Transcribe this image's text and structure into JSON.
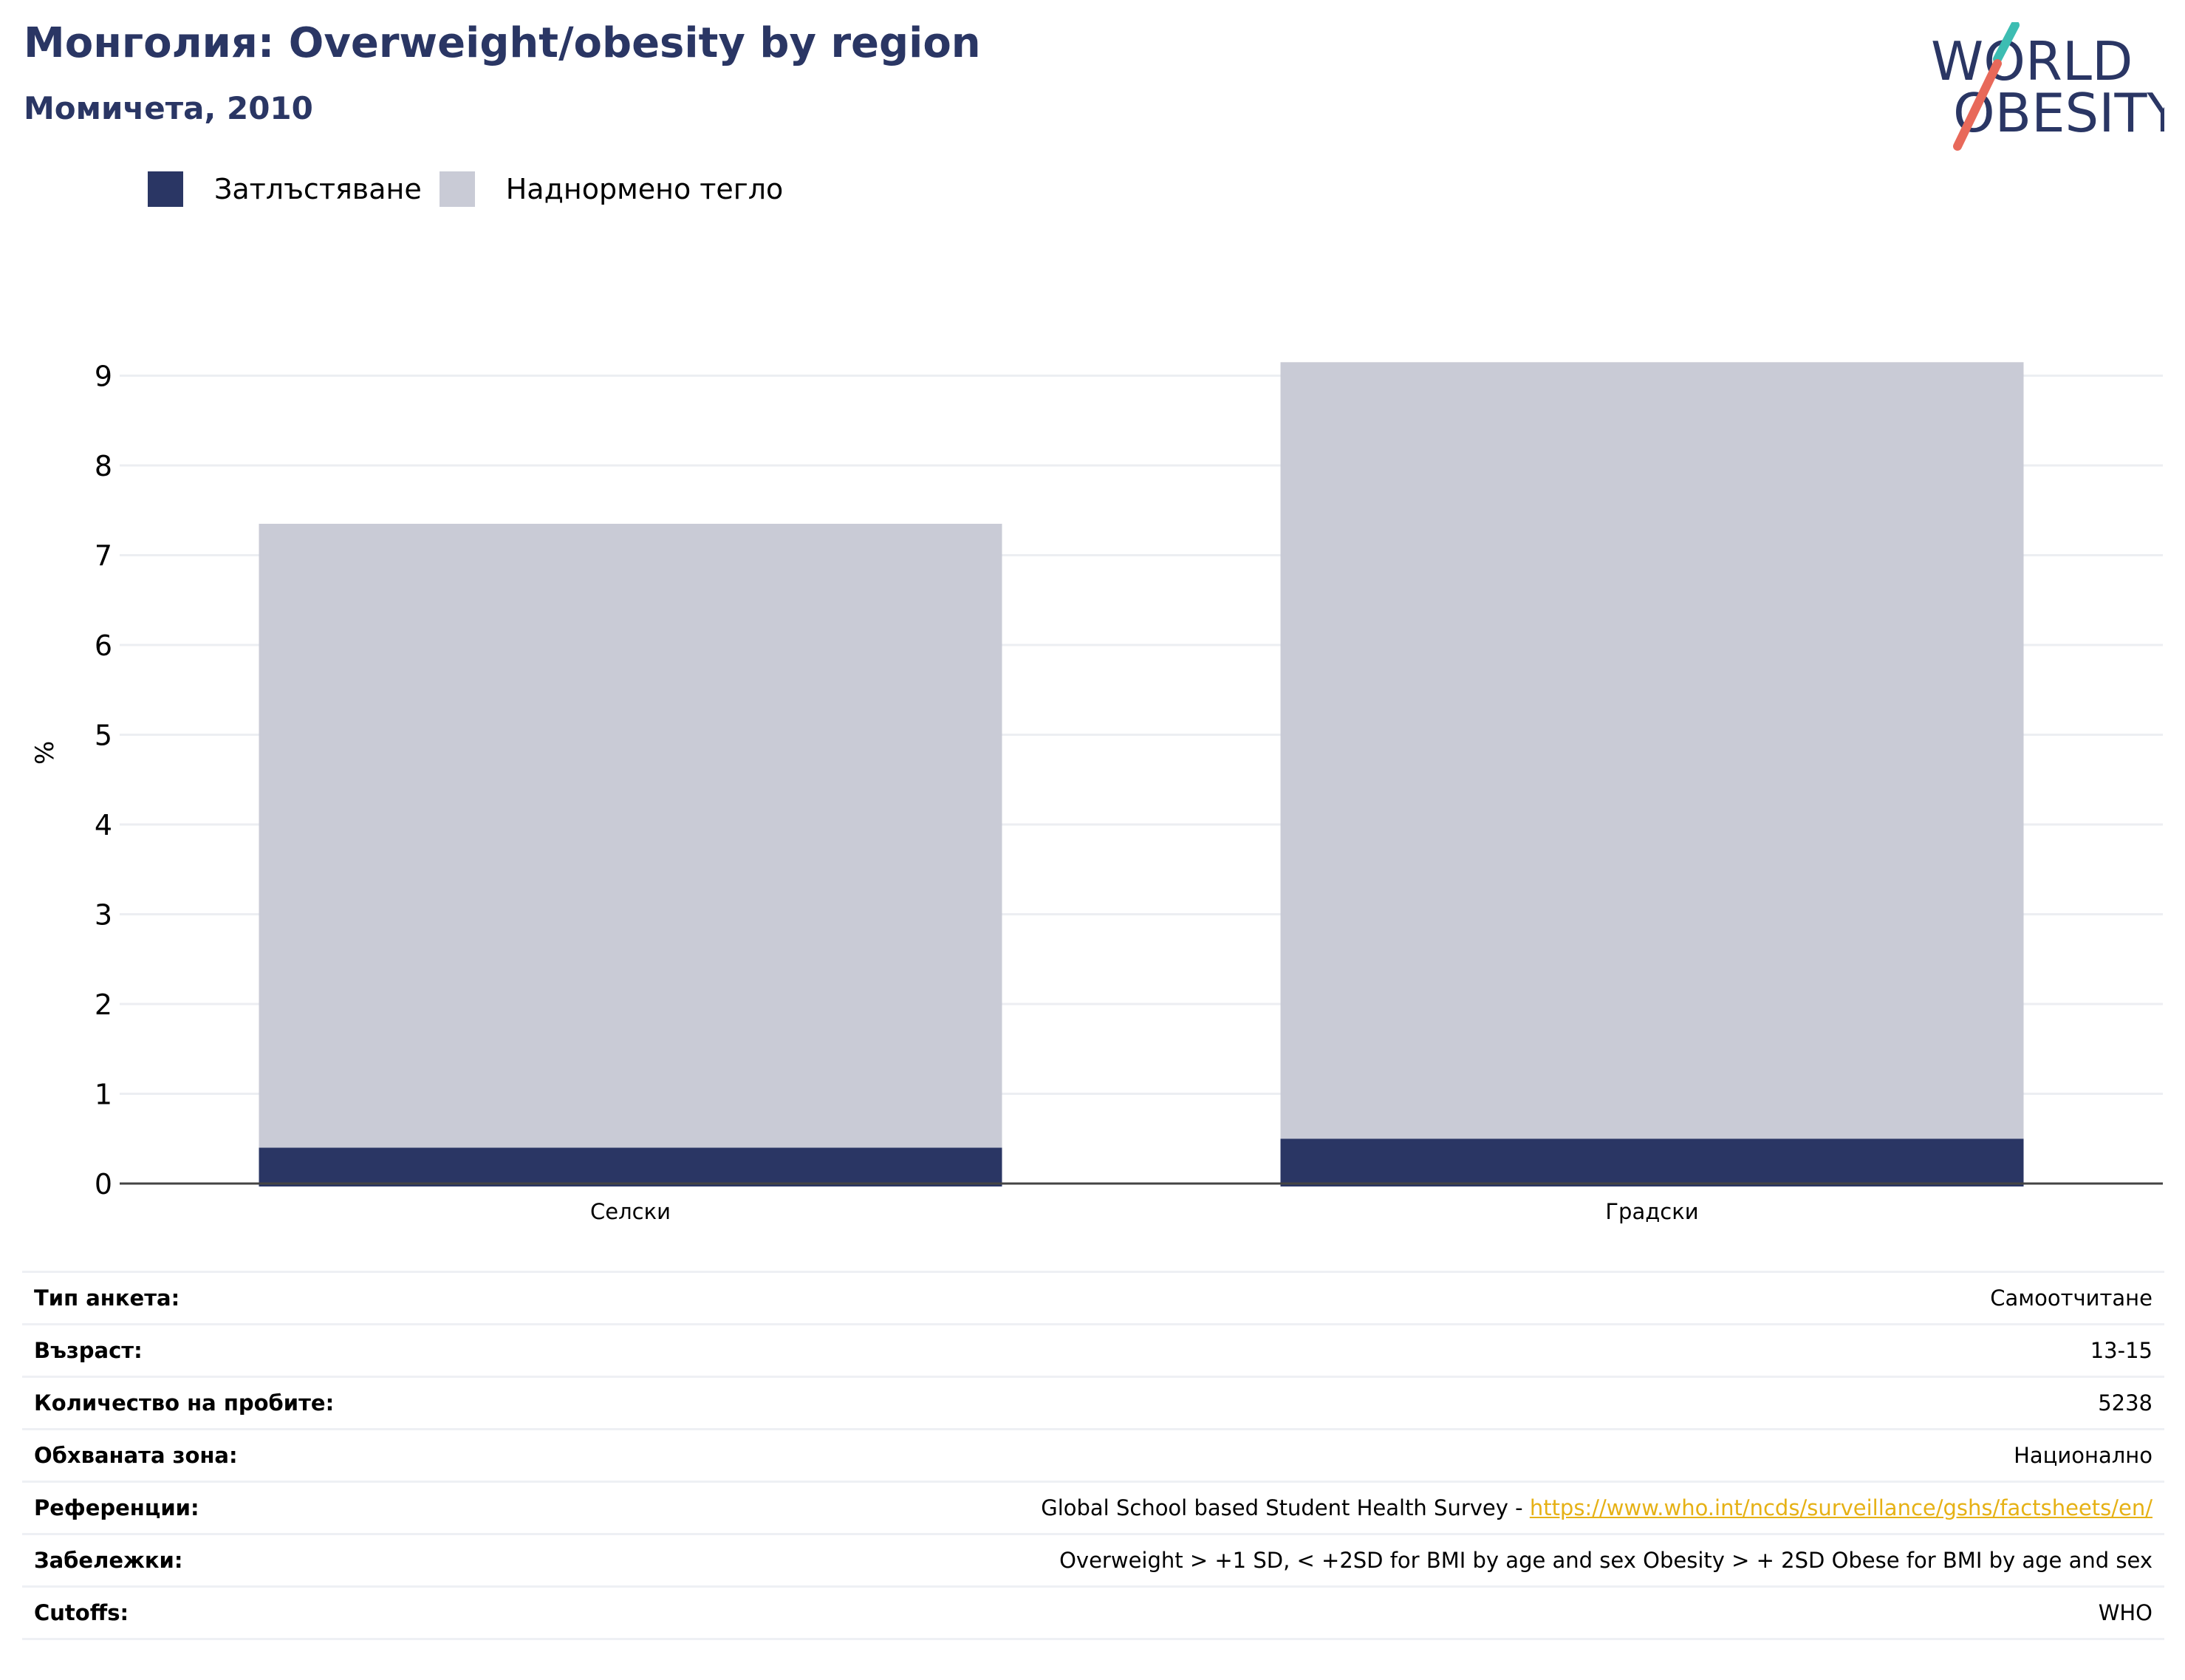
{
  "header": {
    "title": "Монголия: Overweight/obesity by region",
    "subtitle": "Момичета, 2010"
  },
  "logo": {
    "line1": "WORLD",
    "line2": "OBESITY",
    "accent_teal": "#3dbdb2",
    "accent_coral": "#e8695a",
    "text_color": "#2a3664"
  },
  "colors": {
    "obesity": "#2a3664",
    "overweight": "#c9cbd6",
    "grid": "#eceef2",
    "axis": "#444444"
  },
  "chart_data": {
    "type": "bar",
    "stacked": true,
    "categories": [
      "Селски",
      "Градски"
    ],
    "series": [
      {
        "name": "Затлъстяване",
        "values": [
          0.4,
          0.5
        ]
      },
      {
        "name": "Наднормено тегло",
        "values": [
          6.95,
          8.65
        ]
      }
    ],
    "ylabel": "%",
    "ylim": [
      0,
      9.6
    ],
    "yticks": [
      0,
      1,
      2,
      3,
      4,
      5,
      6,
      7,
      8,
      9
    ],
    "grid": true,
    "legend_position": "top-left"
  },
  "info": {
    "rows": [
      {
        "key": "Тип анкета:",
        "value": "Самоотчитане"
      },
      {
        "key": "Възраст:",
        "value": "13-15"
      },
      {
        "key": "Количество на пробите:",
        "value": "5238"
      },
      {
        "key": "Обхваната зона:",
        "value": "Национално"
      },
      {
        "key": "Референции:",
        "value": "Global School based Student Health Survey - ",
        "link": "https://www.who.int/ncds/surveillance/gshs/factsheets/en/"
      },
      {
        "key": "Забележки:",
        "value": "Overweight > +1 SD, < +2SD for BMI by age and sex Obesity > + 2SD Obese for BMI by age and sex"
      },
      {
        "key": "Cutoffs:",
        "value": "WHO"
      }
    ]
  }
}
